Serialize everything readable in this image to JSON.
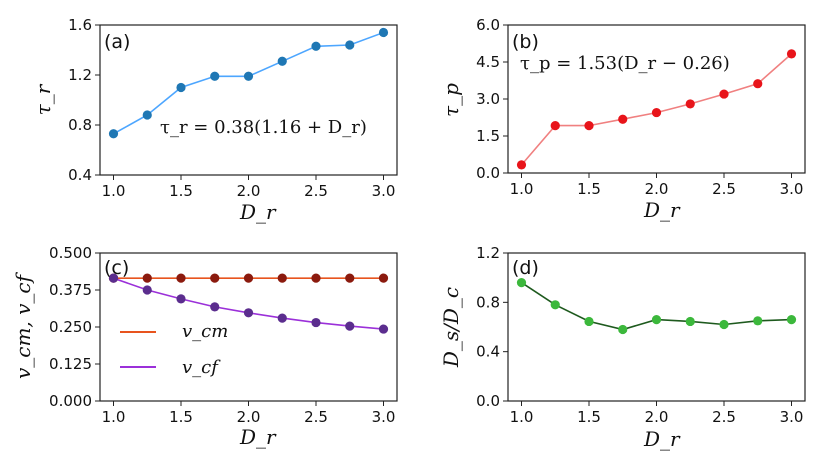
{
  "chart_data": [
    {
      "type": "line",
      "panel": "(a)",
      "title": "",
      "xlabel": "D_r",
      "ylabel": "τ_r",
      "x": [
        1.0,
        1.25,
        1.5,
        1.75,
        2.0,
        2.25,
        2.5,
        2.75,
        3.0
      ],
      "series": [
        {
          "name": "τ_r",
          "values": [
            0.73,
            0.88,
            1.1,
            1.19,
            1.19,
            1.31,
            1.43,
            1.44,
            1.54
          ],
          "color": "#1f77b4",
          "line_color": "#4da6ff"
        }
      ],
      "xlim": [
        0.9,
        3.1
      ],
      "ylim": [
        0.4,
        1.6
      ],
      "xticks": [
        "1.0",
        "1.5",
        "2.0",
        "2.5",
        "3.0"
      ],
      "yticks": [
        "0.4",
        "0.8",
        "1.2",
        "1.6"
      ],
      "annotation": "τ_r = 0.38(1.16 + D_r)"
    },
    {
      "type": "line",
      "panel": "(b)",
      "title": "",
      "xlabel": "D_r",
      "ylabel": "τ_p",
      "x": [
        1.0,
        1.25,
        1.5,
        1.75,
        2.0,
        2.25,
        2.5,
        2.75,
        3.0
      ],
      "series": [
        {
          "name": "τ_p",
          "values": [
            0.33,
            1.92,
            1.92,
            2.18,
            2.45,
            2.8,
            3.2,
            3.62,
            4.83
          ],
          "color": "#e8141a",
          "line_color": "#f08080"
        }
      ],
      "xlim": [
        0.9,
        3.1
      ],
      "ylim": [
        0.0,
        6.0
      ],
      "xticks": [
        "1.0",
        "1.5",
        "2.0",
        "2.5",
        "3.0"
      ],
      "yticks": [
        "0.0",
        "1.5",
        "3.0",
        "4.5",
        "6.0"
      ],
      "annotation": "τ_p = 1.53(D_r − 0.26)"
    },
    {
      "type": "line",
      "panel": "(c)",
      "title": "",
      "xlabel": "D_r",
      "ylabel": "v_cm, v_cf",
      "x": [
        1.0,
        1.25,
        1.5,
        1.75,
        2.0,
        2.25,
        2.5,
        2.75,
        3.0
      ],
      "series": [
        {
          "name": "v_cm",
          "values": [
            0.415,
            0.415,
            0.415,
            0.415,
            0.415,
            0.415,
            0.415,
            0.415,
            0.415
          ],
          "color": "#8b1a0e",
          "line_color": "#e8541e"
        },
        {
          "name": "v_cf",
          "values": [
            0.415,
            0.375,
            0.345,
            0.318,
            0.298,
            0.28,
            0.265,
            0.253,
            0.243
          ],
          "color": "#5b2d8e",
          "line_color": "#9b30d9"
        }
      ],
      "xlim": [
        0.9,
        3.1
      ],
      "ylim": [
        0.0,
        0.5
      ],
      "xticks": [
        "1.0",
        "1.5",
        "2.0",
        "2.5",
        "3.0"
      ],
      "yticks": [
        "0.000",
        "0.125",
        "0.250",
        "0.375",
        "0.500"
      ],
      "legend": [
        {
          "label": "v_cm",
          "color": "#e8541e"
        },
        {
          "label": "v_cf",
          "color": "#9b30d9"
        }
      ],
      "legend_position": "center-left"
    },
    {
      "type": "line",
      "panel": "(d)",
      "title": "",
      "xlabel": "D_r",
      "ylabel": "D_s/D_c",
      "x": [
        1.0,
        1.25,
        1.5,
        1.75,
        2.0,
        2.25,
        2.5,
        2.75,
        3.0
      ],
      "series": [
        {
          "name": "D_s/D_c",
          "values": [
            0.96,
            0.78,
            0.645,
            0.58,
            0.66,
            0.645,
            0.62,
            0.65,
            0.66
          ],
          "color": "#3cb83c",
          "line_color": "#1e5a1e"
        }
      ],
      "xlim": [
        0.9,
        3.1
      ],
      "ylim": [
        0.0,
        1.2
      ],
      "xticks": [
        "1.0",
        "1.5",
        "2.0",
        "2.5",
        "3.0"
      ],
      "yticks": [
        "0.0",
        "0.4",
        "0.8",
        "1.2"
      ]
    }
  ]
}
